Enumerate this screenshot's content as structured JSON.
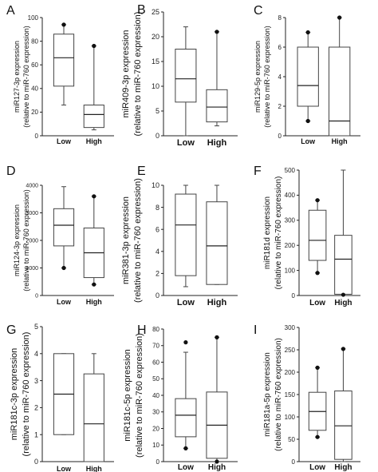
{
  "chart_data": [
    {
      "panel": "A",
      "type": "box",
      "categories": [
        "Low",
        "High"
      ],
      "ylabel_lines": [
        "miR127-3p expression",
        "(relative to miR-760 expression)"
      ],
      "ylim": [
        0,
        100
      ],
      "yticks": [
        0,
        20,
        40,
        60,
        80,
        100
      ],
      "boxes": [
        {
          "category": "Low",
          "whisker_low": 26,
          "q1": 42,
          "median": 66,
          "q3": 86,
          "whisker_high": 94,
          "outliers": [
            94
          ]
        },
        {
          "category": "High",
          "whisker_low": 5,
          "q1": 7,
          "median": 18,
          "q3": 26,
          "whisker_high": 76,
          "outliers": [
            76
          ]
        }
      ]
    },
    {
      "panel": "B",
      "type": "box",
      "categories": [
        "Low",
        "High"
      ],
      "ylabel_lines": [
        "miR409-3p expression",
        "(relative to miR-760 expression)"
      ],
      "ylim": [
        0,
        25
      ],
      "yticks": [
        0,
        5,
        10,
        15,
        20,
        25
      ],
      "boxes": [
        {
          "category": "Low",
          "whisker_low": 0,
          "q1": 6.8,
          "median": 11.5,
          "q3": 17.5,
          "whisker_high": 22,
          "outliers": []
        },
        {
          "category": "High",
          "whisker_low": 2,
          "q1": 2.8,
          "median": 5.8,
          "q3": 9.3,
          "whisker_high": 21,
          "outliers": [
            21
          ]
        }
      ]
    },
    {
      "panel": "C",
      "type": "box",
      "categories": [
        "Low",
        "High"
      ],
      "ylabel_lines": [
        "miR129-5p expression",
        "(relative to miR-760 expression)"
      ],
      "ylim": [
        0,
        8
      ],
      "yticks": [
        0,
        2,
        4,
        6,
        8
      ],
      "boxes": [
        {
          "category": "Low",
          "whisker_low": 1,
          "q1": 2,
          "median": 3.4,
          "q3": 6,
          "whisker_high": 7,
          "outliers": [
            1,
            7
          ]
        },
        {
          "category": "High",
          "whisker_low": 0,
          "q1": 0,
          "median": 1,
          "q3": 6,
          "whisker_high": 8,
          "outliers": [
            8
          ]
        }
      ]
    },
    {
      "panel": "D",
      "type": "box",
      "categories": [
        "Low",
        "High"
      ],
      "ylabel_lines": [
        "miR124-3p expression",
        "(relative to miR-760 expression)"
      ],
      "ylim": [
        0,
        4000
      ],
      "yticks": [
        0,
        1000,
        2000,
        3000,
        4000
      ],
      "boxes": [
        {
          "category": "Low",
          "whisker_low": 1000,
          "q1": 1800,
          "median": 2550,
          "q3": 3150,
          "whisker_high": 3950,
          "outliers": [
            1000
          ]
        },
        {
          "category": "High",
          "whisker_low": 400,
          "q1": 650,
          "median": 1550,
          "q3": 2450,
          "whisker_high": 3600,
          "outliers": [
            400,
            3600
          ]
        }
      ]
    },
    {
      "panel": "E",
      "type": "box",
      "categories": [
        "Low",
        "High"
      ],
      "ylabel_lines": [
        "miR381-3p expression",
        "(relative to miR-760 expression)"
      ],
      "ylim": [
        0,
        10
      ],
      "yticks": [
        0,
        2,
        4,
        6,
        8,
        10
      ],
      "boxes": [
        {
          "category": "Low",
          "whisker_low": 0.8,
          "q1": 1.8,
          "median": 6.4,
          "q3": 9.2,
          "whisker_high": 10,
          "outliers": []
        },
        {
          "category": "High",
          "whisker_low": 1,
          "q1": 1,
          "median": 4.5,
          "q3": 8.5,
          "whisker_high": 10,
          "outliers": []
        }
      ]
    },
    {
      "panel": "F",
      "type": "box",
      "categories": [
        "Low",
        "High"
      ],
      "ylabel_lines": [
        "miR181d expression",
        "(relative to miR-760 expression)"
      ],
      "ylim": [
        0,
        500
      ],
      "yticks": [
        0,
        100,
        200,
        300,
        400,
        500
      ],
      "boxes": [
        {
          "category": "Low",
          "whisker_low": 90,
          "q1": 140,
          "median": 220,
          "q3": 340,
          "whisker_high": 380,
          "outliers": [
            90,
            380
          ]
        },
        {
          "category": "High",
          "whisker_low": 0,
          "q1": 5,
          "median": 145,
          "q3": 240,
          "whisker_high": 500,
          "outliers": [
            3
          ]
        }
      ]
    },
    {
      "panel": "G",
      "type": "box",
      "categories": [
        "Low",
        "High"
      ],
      "ylabel_lines": [
        "miR181c-3p expression",
        "(relative to miR-760 expression)"
      ],
      "ylim": [
        0,
        5
      ],
      "yticks": [
        0,
        1,
        2,
        3,
        4,
        5
      ],
      "boxes": [
        {
          "category": "Low",
          "whisker_low": 1,
          "q1": 1,
          "median": 2.5,
          "q3": 4,
          "whisker_high": 4,
          "outliers": []
        },
        {
          "category": "High",
          "whisker_low": 0,
          "q1": 0,
          "median": 1.4,
          "q3": 3.25,
          "whisker_high": 4,
          "outliers": []
        }
      ]
    },
    {
      "panel": "H",
      "type": "box",
      "categories": [
        "Low",
        "High"
      ],
      "ylabel_lines": [
        "miR181c-5p expression",
        "(relative to miR-760 expression)"
      ],
      "ylim": [
        0,
        80
      ],
      "yticks": [
        0,
        10,
        20,
        30,
        40,
        50,
        60,
        70,
        80
      ],
      "boxes": [
        {
          "category": "Low",
          "whisker_low": 8,
          "q1": 15,
          "median": 28,
          "q3": 38,
          "whisker_high": 66,
          "outliers": [
            8,
            72
          ]
        },
        {
          "category": "High",
          "whisker_low": 0,
          "q1": 2,
          "median": 22,
          "q3": 42,
          "whisker_high": 75,
          "outliers": [
            0,
            75
          ]
        }
      ]
    },
    {
      "panel": "I",
      "type": "box",
      "categories": [
        "Low",
        "High"
      ],
      "ylabel_lines": [
        "miR181a-5p expression",
        "(relative to miR-760 expression)"
      ],
      "ylim": [
        0,
        300
      ],
      "yticks": [
        0,
        50,
        100,
        150,
        200,
        250,
        300
      ],
      "boxes": [
        {
          "category": "Low",
          "whisker_low": 55,
          "q1": 70,
          "median": 112,
          "q3": 155,
          "whisker_high": 210,
          "outliers": [
            55,
            210
          ]
        },
        {
          "category": "High",
          "whisker_low": 0,
          "q1": 5,
          "median": 80,
          "q3": 158,
          "whisker_high": 252,
          "outliers": [
            252
          ]
        }
      ]
    }
  ]
}
